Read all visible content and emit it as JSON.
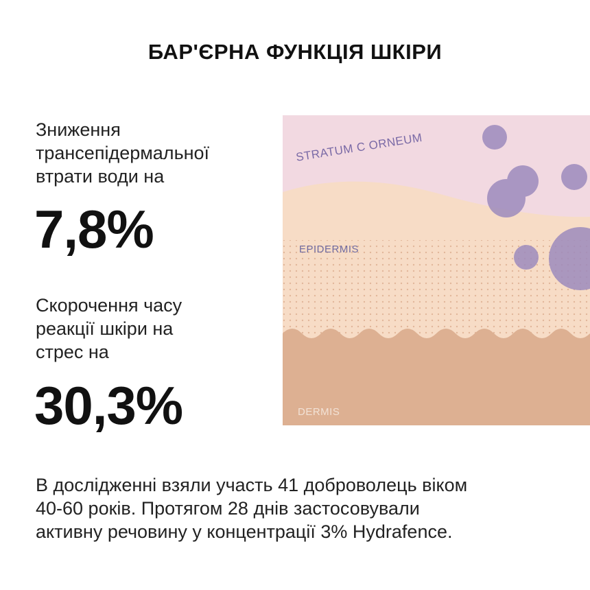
{
  "title": "БАР'ЄРНА ФУНКЦІЯ ШКІРИ",
  "stats": [
    {
      "label_lines": [
        "Зниження",
        "трансепідермальної",
        "втрати води на"
      ],
      "value": "7,8%"
    },
    {
      "label_lines": [
        "Скорочення часу",
        "реакції шкіри на",
        "стрес на"
      ],
      "value": "30,3%"
    }
  ],
  "illustration": {
    "layers": [
      "STRATUM C ORNEUM",
      "EPIDERMIS",
      "DERMIS"
    ],
    "colors": {
      "stratum": "#f2d9e1",
      "epidermis": "#f7dcc6",
      "dermis": "#ddb092",
      "bubbles": "#9d8bbd",
      "dots": "#d9a98b"
    }
  },
  "footer_lines": [
    "В дослідженні взяли участь 41 доброволець віком",
    "40-60 років. Протягом 28 днів застосовували",
    "активну речовину у концентрації 3% Hydrafence."
  ]
}
